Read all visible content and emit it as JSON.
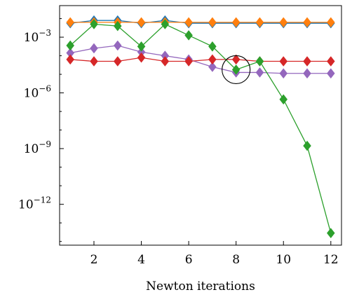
{
  "chart_data": {
    "type": "line",
    "title": "",
    "xlabel": "Newton iterations",
    "ylabel": "",
    "x": [
      1,
      2,
      3,
      4,
      5,
      6,
      7,
      8,
      9,
      10,
      11,
      12
    ],
    "xlim": [
      0.55,
      12.45
    ],
    "xticks": [
      2,
      4,
      6,
      8,
      10,
      12
    ],
    "yscale": "log",
    "ylim_exponent": [
      -14.2,
      -1.3
    ],
    "yticks": [
      {
        "base": "10",
        "exp": "−3",
        "value": -3
      },
      {
        "base": "10",
        "exp": "−6",
        "value": -6
      },
      {
        "base": "10",
        "exp": "−9",
        "value": -9
      },
      {
        "base": "10",
        "exp": "−12",
        "value": -12
      }
    ],
    "grid": false,
    "legend": "none",
    "marker": "diamond",
    "series": [
      {
        "color": "#1f77b4",
        "log10_values": [
          -2.25,
          -2.1,
          -2.1,
          -2.25,
          -2.1,
          -2.25,
          -2.25,
          -2.25,
          -2.25,
          -2.25,
          -2.25,
          -2.25
        ]
      },
      {
        "color": "#9467bd",
        "log10_values": [
          -3.85,
          -3.6,
          -3.45,
          -3.8,
          -4.0,
          -4.2,
          -4.6,
          -4.9,
          -4.9,
          -4.95,
          -4.95,
          -4.95
        ]
      },
      {
        "color": "#d62728",
        "log10_values": [
          -4.2,
          -4.3,
          -4.3,
          -4.1,
          -4.3,
          -4.3,
          -4.2,
          -4.2,
          -4.3,
          -4.3,
          -4.3,
          -4.3
        ]
      },
      {
        "color": "#ff7f0e",
        "log10_values": [
          -2.2,
          -2.2,
          -2.2,
          -2.2,
          -2.2,
          -2.2,
          -2.2,
          -2.2,
          -2.2,
          -2.2,
          -2.2,
          -2.2
        ]
      },
      {
        "color": "#2ca02c",
        "log10_values": [
          -3.45,
          -2.3,
          -2.4,
          -3.5,
          -2.3,
          -2.9,
          -3.5,
          -4.75,
          -4.3,
          -6.35,
          -8.85,
          -13.55
        ]
      }
    ],
    "annotations": [
      {
        "type": "circle",
        "x": 8,
        "log10_value": -4.75,
        "color": "#000000"
      }
    ]
  }
}
